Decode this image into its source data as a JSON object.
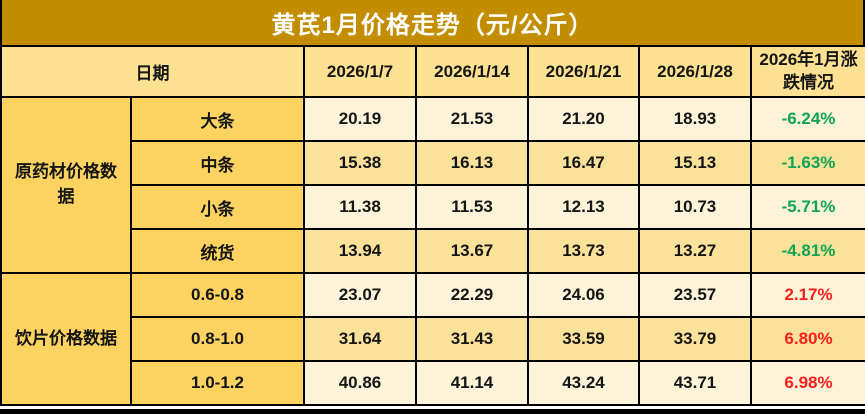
{
  "title": "黄芪1月价格走势（元/公斤）",
  "colors": {
    "title_bg": "#C28E00",
    "header_bg": "#FCE193",
    "label_bg": "#FCD360",
    "row_odd_bg": "#FDF3D8",
    "row_even_bg": "#FBE29A",
    "down_green": "#0FA455",
    "up_red": "#FA1D1D",
    "border": "#000000"
  },
  "header": {
    "date_label": "日期",
    "dates": [
      "2026/1/7",
      "2026/1/14",
      "2026/1/21",
      "2026/1/28"
    ],
    "change_label": "2026年1月涨跌情况"
  },
  "groups": [
    {
      "label": "原药材价格数据",
      "rows": [
        {
          "spec": "大条",
          "values": [
            "20.19",
            "21.53",
            "21.20",
            "18.93"
          ],
          "change": "-6.24%"
        },
        {
          "spec": "中条",
          "values": [
            "15.38",
            "16.13",
            "16.47",
            "15.13"
          ],
          "change": "-1.63%"
        },
        {
          "spec": "小条",
          "values": [
            "11.38",
            "11.53",
            "12.13",
            "10.73"
          ],
          "change": "-5.71%"
        },
        {
          "spec": "统货",
          "values": [
            "13.94",
            "13.67",
            "13.73",
            "13.27"
          ],
          "change": "-4.81%"
        }
      ]
    },
    {
      "label": "饮片价格数据",
      "rows": [
        {
          "spec": "0.6-0.8",
          "values": [
            "23.07",
            "22.29",
            "24.06",
            "23.57"
          ],
          "change": "2.17%"
        },
        {
          "spec": "0.8-1.0",
          "values": [
            "31.64",
            "31.43",
            "33.59",
            "33.79"
          ],
          "change": "6.80%"
        },
        {
          "spec": "1.0-1.2",
          "values": [
            "40.86",
            "41.14",
            "43.24",
            "43.71"
          ],
          "change": "6.98%"
        }
      ]
    }
  ],
  "chart_data": {
    "type": "table",
    "title": "黄芪1月价格走势（元/公斤）",
    "columns": [
      "日期",
      "2026/1/7",
      "2026/1/14",
      "2026/1/21",
      "2026/1/28",
      "2026年1月涨跌情况"
    ],
    "rows": [
      {
        "group": "原药材价格数据",
        "spec": "大条",
        "values": [
          20.19,
          21.53,
          21.2,
          18.93
        ],
        "change_pct": -6.24
      },
      {
        "group": "原药材价格数据",
        "spec": "中条",
        "values": [
          15.38,
          16.13,
          16.47,
          15.13
        ],
        "change_pct": -1.63
      },
      {
        "group": "原药材价格数据",
        "spec": "小条",
        "values": [
          11.38,
          11.53,
          12.13,
          10.73
        ],
        "change_pct": -5.71
      },
      {
        "group": "原药材价格数据",
        "spec": "统货",
        "values": [
          13.94,
          13.67,
          13.73,
          13.27
        ],
        "change_pct": -4.81
      },
      {
        "group": "饮片价格数据",
        "spec": "0.6-0.8",
        "values": [
          23.07,
          22.29,
          24.06,
          23.57
        ],
        "change_pct": 2.17
      },
      {
        "group": "饮片价格数据",
        "spec": "0.8-1.0",
        "values": [
          31.64,
          31.43,
          33.59,
          33.79
        ],
        "change_pct": 6.8
      },
      {
        "group": "饮片价格数据",
        "spec": "1.0-1.2",
        "values": [
          40.86,
          41.14,
          43.24,
          43.71
        ],
        "change_pct": 6.98
      }
    ],
    "layout_hints": {
      "negative_color": "green",
      "positive_color": "red",
      "grid": "on"
    }
  }
}
